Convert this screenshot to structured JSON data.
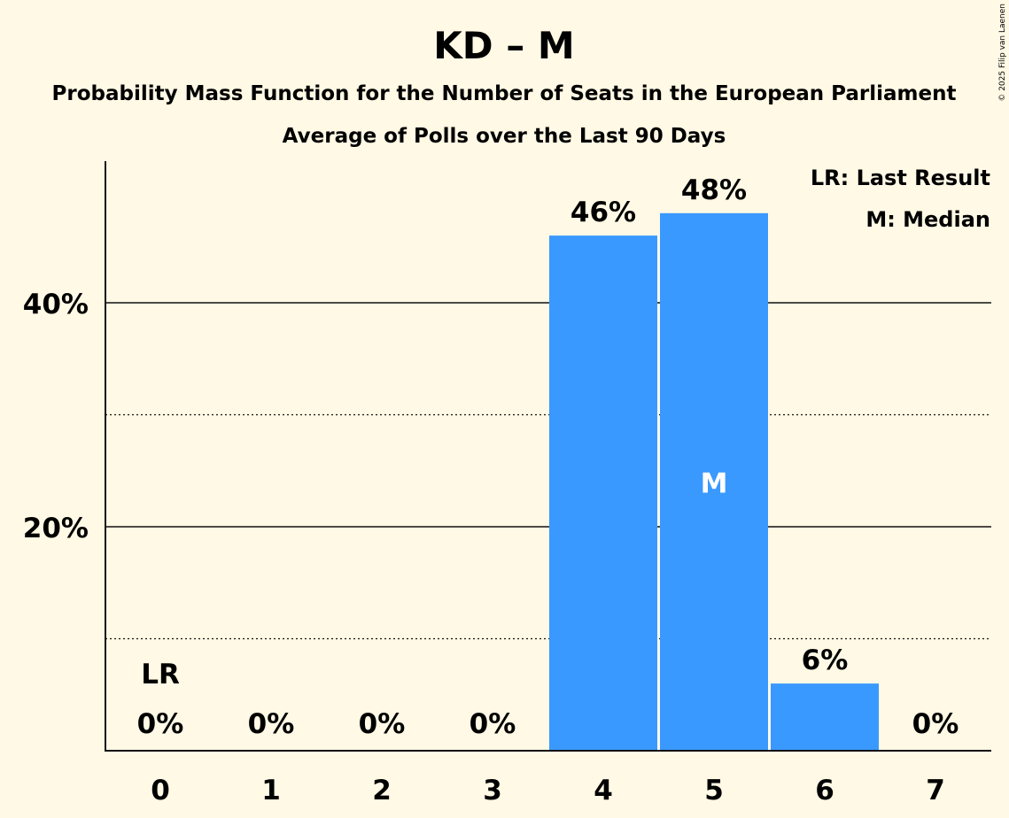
{
  "chart_data": {
    "type": "bar",
    "title": "KD – M",
    "subtitle": "Probability Mass Function for the Number of Seats in the European Parliament",
    "subtitle2": "Average of Polls over the Last 90 Days",
    "categories": [
      "0",
      "1",
      "2",
      "3",
      "4",
      "5",
      "6",
      "7"
    ],
    "values": [
      0,
      0,
      0,
      0,
      46,
      48,
      6,
      0
    ],
    "value_labels": [
      "0%",
      "0%",
      "0%",
      "0%",
      "46%",
      "48%",
      "6%",
      "0%"
    ],
    "yticks": [
      {
        "value": 20,
        "label": "20%"
      },
      {
        "value": 40,
        "label": "40%"
      }
    ],
    "minor_gridlines": [
      10,
      30
    ],
    "ylim": [
      0,
      53
    ],
    "last_result_index": 0,
    "median_index": 5,
    "last_result_mark": "LR",
    "median_mark": "M",
    "legend": {
      "position": "top-right",
      "items": [
        "LR: Last Result",
        "M: Median"
      ]
    },
    "bar_color": "#3A99FF",
    "copyright": "© 2025 Filip van Laenen"
  }
}
